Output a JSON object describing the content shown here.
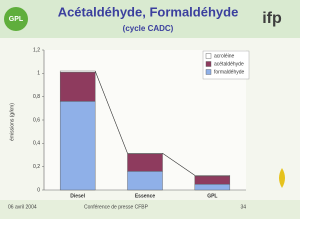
{
  "chart_data": {
    "type": "stacked_bar",
    "title": "Acétaldéhyde, Formaldéhyde",
    "subtitle": "(cycle CADC)",
    "y_label": "émissions (g/km)",
    "categories": [
      "Diesel",
      "Essence",
      "GPL"
    ],
    "series": [
      {
        "name": "acroléine",
        "color": "#ffffff",
        "values": [
          0.01,
          0.005,
          0.005
        ]
      },
      {
        "name": "acétaldéhyde",
        "color": "#8e3b5e",
        "values": [
          0.25,
          0.15,
          0.07
        ]
      },
      {
        "name": "formaldéhyde",
        "color": "#8fb0e8",
        "values": [
          0.76,
          0.16,
          0.05
        ]
      }
    ],
    "ylim": [
      0,
      1.2
    ],
    "yticks": [
      0,
      {
        "value": 0.2,
        "label": "0,2"
      },
      {
        "value": 0.4,
        "label": "0,4"
      },
      {
        "value": 0.6,
        "label": "0,6"
      },
      {
        "value": 0.8,
        "label": "0,8"
      },
      1,
      {
        "value": 1.2,
        "label": "1,2"
      }
    ],
    "legend": "top-right",
    "footer": {
      "date": "06 avril 2004",
      "event": "Conférence de presse CFBP",
      "page": "34"
    },
    "logos": {
      "left": "GPL",
      "right": "ifp"
    }
  }
}
